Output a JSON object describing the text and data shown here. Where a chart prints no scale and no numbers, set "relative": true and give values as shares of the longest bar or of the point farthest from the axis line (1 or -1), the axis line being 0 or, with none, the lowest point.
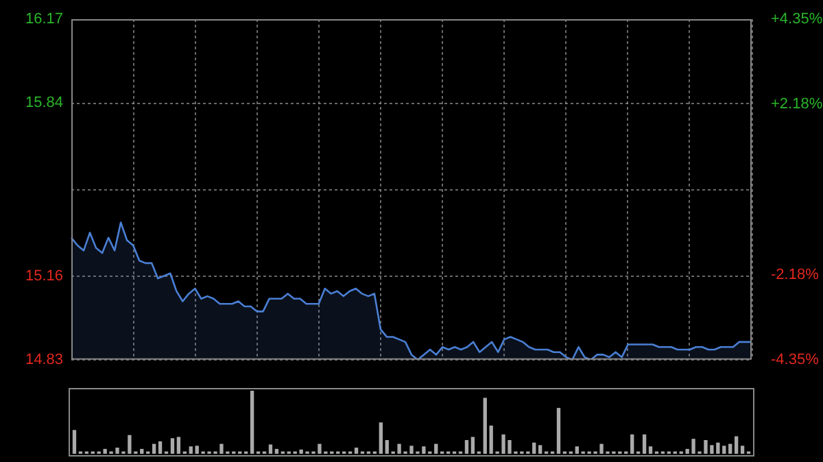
{
  "chart_data": [
    {
      "type": "area",
      "categories": [
        null,
        null,
        null,
        null,
        null,
        null,
        null,
        null,
        null,
        null,
        null,
        null,
        null,
        null,
        null,
        null,
        null,
        null,
        null,
        null,
        null,
        null,
        null,
        null,
        null,
        null,
        null,
        null,
        null,
        null,
        null,
        null,
        null,
        null,
        null,
        null,
        null,
        null,
        null,
        null,
        null,
        null,
        null,
        null,
        null,
        null,
        null,
        null,
        null,
        null,
        null,
        null,
        null,
        null,
        null,
        null,
        null,
        null,
        null,
        null,
        null,
        null,
        null,
        null,
        null,
        null,
        null,
        null,
        null,
        null,
        null,
        null,
        null,
        null,
        null,
        null,
        null,
        null,
        null,
        null,
        null,
        null,
        null,
        null,
        null,
        null,
        null,
        null,
        null,
        null,
        null,
        null,
        null,
        null,
        null,
        null,
        null,
        null,
        null,
        null,
        null,
        null,
        null,
        null,
        null,
        null,
        null,
        null,
        null,
        null,
        null
      ],
      "values": [
        15.31,
        15.28,
        15.26,
        15.33,
        15.27,
        15.25,
        15.31,
        15.26,
        15.37,
        15.3,
        15.28,
        15.22,
        15.21,
        15.21,
        15.15,
        15.16,
        15.17,
        15.1,
        15.06,
        15.09,
        15.11,
        15.07,
        15.08,
        15.07,
        15.05,
        15.05,
        15.05,
        15.06,
        15.04,
        15.04,
        15.02,
        15.02,
        15.07,
        15.07,
        15.07,
        15.09,
        15.07,
        15.07,
        15.05,
        15.05,
        15.05,
        15.11,
        15.09,
        15.1,
        15.08,
        15.1,
        15.11,
        15.09,
        15.08,
        15.09,
        14.95,
        14.92,
        14.92,
        14.91,
        14.9,
        14.85,
        14.83,
        14.85,
        14.87,
        14.85,
        14.88,
        14.87,
        14.88,
        14.87,
        14.88,
        14.9,
        14.86,
        14.88,
        14.9,
        14.86,
        14.91,
        14.92,
        14.91,
        14.9,
        14.88,
        14.87,
        14.87,
        14.87,
        14.86,
        14.86,
        14.84,
        14.83,
        14.88,
        14.84,
        14.83,
        14.85,
        14.85,
        14.84,
        14.86,
        14.84,
        14.89,
        14.89,
        14.89,
        14.89,
        14.89,
        14.88,
        14.88,
        14.88,
        14.87,
        14.87,
        14.87,
        14.88,
        14.88,
        14.87,
        14.87,
        14.88,
        14.88,
        14.88,
        14.9,
        14.9,
        14.9
      ],
      "color": "#4a7fd4",
      "ylim": [
        14.83,
        16.17
      ],
      "yticks": [
        14.83,
        15.16,
        {
          "value": 15.5,
          "label": null
        },
        15.84,
        16.17
      ],
      "y2lim": [
        -4.35,
        4.35
      ],
      "y2ticks": [
        {
          "value": -4.35,
          "label": "-4.35%"
        },
        {
          "value": -2.18,
          "label": "-2.18%"
        },
        {
          "value": 0,
          "label": null
        },
        {
          "value": 2.18,
          "label": "+2.18%"
        },
        {
          "value": 4.35,
          "label": "+4.35%"
        }
      ],
      "grid": true,
      "legend": false,
      "tick_labels": "y"
    },
    {
      "type": "bar",
      "relative": true,
      "categories": [
        null,
        null,
        null,
        null,
        null,
        null,
        null,
        null,
        null,
        null,
        null,
        null,
        null,
        null,
        null,
        null,
        null,
        null,
        null,
        null,
        null,
        null,
        null,
        null,
        null,
        null,
        null,
        null,
        null,
        null,
        null,
        null,
        null,
        null,
        null,
        null,
        null,
        null,
        null,
        null,
        null,
        null,
        null,
        null,
        null,
        null,
        null,
        null,
        null,
        null,
        null,
        null,
        null,
        null,
        null,
        null,
        null,
        null,
        null,
        null,
        null,
        null,
        null,
        null,
        null,
        null,
        null,
        null,
        null,
        null,
        null,
        null,
        null,
        null,
        null,
        null,
        null,
        null,
        null,
        null,
        null,
        null,
        null,
        null,
        null,
        null,
        null,
        null,
        null,
        null,
        null,
        null,
        null,
        null,
        null,
        null,
        null,
        null,
        null,
        null,
        null,
        null,
        null,
        null,
        null,
        null,
        null,
        null,
        null,
        null,
        null
      ],
      "values": [
        0.37,
        0.03,
        0.03,
        0.03,
        0.03,
        0.07,
        0.03,
        0.09,
        0.03,
        0.29,
        0.03,
        0.07,
        0.03,
        0.15,
        0.19,
        0.03,
        0.24,
        0.26,
        0.03,
        0.11,
        0.12,
        0.03,
        0.03,
        0.03,
        0.15,
        0.03,
        0.03,
        0.03,
        0.03,
        1,
        0.03,
        0.03,
        0.14,
        0.07,
        0.03,
        0.03,
        0.03,
        0.06,
        0.03,
        0.03,
        0.15,
        0.03,
        0.03,
        0.03,
        0.03,
        0.03,
        0.09,
        0.03,
        0.03,
        0.03,
        0.49,
        0.21,
        0.03,
        0.15,
        0.03,
        0.12,
        0.03,
        0.11,
        0.03,
        0.15,
        0.03,
        0.03,
        0.03,
        0.03,
        0.21,
        0.26,
        0.03,
        0.88,
        0.44,
        0.03,
        0.3,
        0.21,
        0.03,
        0.03,
        0.03,
        0.17,
        0.13,
        0.03,
        0.03,
        0.72,
        0.03,
        0.03,
        0.11,
        0.03,
        0.03,
        0.03,
        0.15,
        0.03,
        0.03,
        0.03,
        0.03,
        0.3,
        0.03,
        0.3,
        0.11,
        0.03,
        0.03,
        0.03,
        0.03,
        0.03,
        0.07,
        0.23,
        0.03,
        0.21,
        0.13,
        0.17,
        0.12,
        0.15,
        0.27,
        0.12,
        0.03
      ],
      "color": "#aaaaaa",
      "tick_labels": false,
      "legend": false
    }
  ]
}
